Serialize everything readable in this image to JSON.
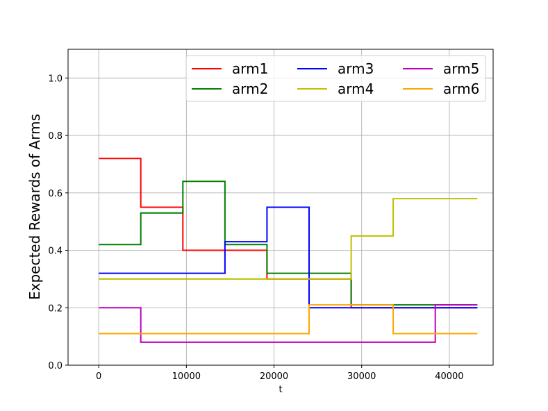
{
  "chart_data": {
    "type": "line",
    "step": true,
    "title": "",
    "xlabel": "t",
    "ylabel": "Expected Rewards of Arms",
    "xlim": [
      -3500,
      45000
    ],
    "ylim": [
      0.0,
      1.1
    ],
    "xticks": [
      0,
      10000,
      20000,
      30000,
      40000
    ],
    "xtick_labels": [
      "0",
      "10000",
      "20000",
      "30000",
      "40000"
    ],
    "yticks": [
      0.0,
      0.2,
      0.4,
      0.6,
      0.8,
      1.0
    ],
    "ytick_labels": [
      "0.0",
      "0.2",
      "0.4",
      "0.6",
      "0.8",
      "1.0"
    ],
    "grid": true,
    "legend": {
      "position": "top-right",
      "columns": 3
    },
    "breakpoints": [
      0,
      4800,
      9600,
      14400,
      19200,
      24000,
      28800,
      33600,
      38400,
      43200
    ],
    "series": [
      {
        "name": "arm1",
        "color": "#ff0000",
        "values": [
          0.72,
          0.55,
          0.4,
          0.4,
          0.3,
          0.3,
          0.2,
          0.2,
          0.2
        ]
      },
      {
        "name": "arm2",
        "color": "#008000",
        "values": [
          0.42,
          0.53,
          0.64,
          0.42,
          0.32,
          0.32,
          0.21,
          0.21,
          0.21
        ]
      },
      {
        "name": "arm3",
        "color": "#0000ff",
        "values": [
          0.32,
          0.32,
          0.32,
          0.43,
          0.55,
          0.2,
          0.2,
          0.2,
          0.2
        ]
      },
      {
        "name": "arm4",
        "color": "#bfbf00",
        "values": [
          0.3,
          0.3,
          0.3,
          0.3,
          0.3,
          0.3,
          0.45,
          0.58,
          0.58
        ]
      },
      {
        "name": "arm5",
        "color": "#bf00bf",
        "values": [
          0.2,
          0.08,
          0.08,
          0.08,
          0.08,
          0.08,
          0.08,
          0.08,
          0.21
        ]
      },
      {
        "name": "arm6",
        "color": "#ffa500",
        "values": [
          0.11,
          0.11,
          0.11,
          0.11,
          0.11,
          0.21,
          0.21,
          0.11,
          0.11
        ]
      }
    ]
  }
}
